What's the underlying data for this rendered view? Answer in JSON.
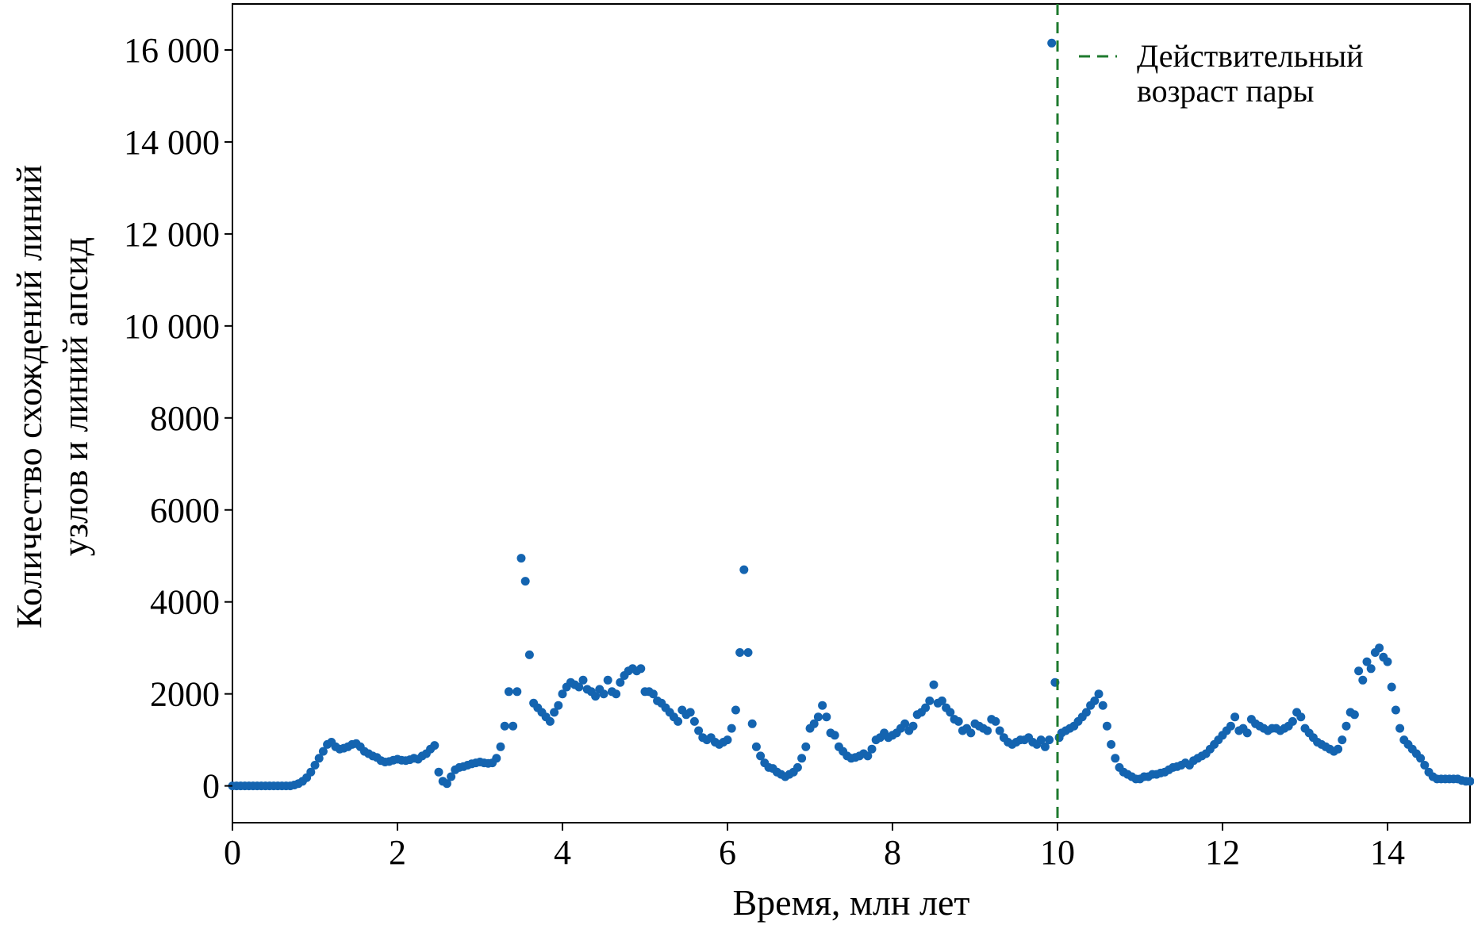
{
  "chart_data": {
    "type": "scatter",
    "xlabel": "Время, млн лет",
    "ylabel_line1": "Количество схождений линий",
    "ylabel_line2": "узлов и линий апсид",
    "xlim": [
      0,
      15
    ],
    "ylim": [
      -800,
      17000
    ],
    "x_ticks": [
      0,
      2,
      4,
      6,
      8,
      10,
      12,
      14
    ],
    "x_tick_labels": [
      "0",
      "2",
      "4",
      "6",
      "8",
      "10",
      "12",
      "14"
    ],
    "y_ticks": [
      0,
      2000,
      4000,
      6000,
      8000,
      10000,
      12000,
      14000,
      16000
    ],
    "y_tick_labels": [
      "0",
      "2000",
      "4000",
      "6000",
      "8000",
      "10 000",
      "12 000",
      "14 000",
      "16 000"
    ],
    "grid": false,
    "point_color": "#1464b0",
    "reference_line": {
      "x": 10,
      "color": "#1e7a2e",
      "style": "dashed"
    },
    "legend": {
      "placement": "top-right",
      "entries": [
        "Действительный возраст пары"
      ]
    },
    "series": [
      {
        "points": [
          [
            0.0,
            0
          ],
          [
            0.05,
            0
          ],
          [
            0.1,
            0
          ],
          [
            0.15,
            0
          ],
          [
            0.2,
            0
          ],
          [
            0.25,
            0
          ],
          [
            0.3,
            0
          ],
          [
            0.35,
            0
          ],
          [
            0.4,
            0
          ],
          [
            0.45,
            0
          ],
          [
            0.5,
            0
          ],
          [
            0.55,
            0
          ],
          [
            0.6,
            0
          ],
          [
            0.65,
            0
          ],
          [
            0.7,
            0
          ],
          [
            0.75,
            20
          ],
          [
            0.8,
            50
          ],
          [
            0.85,
            100
          ],
          [
            0.9,
            180
          ],
          [
            0.95,
            300
          ],
          [
            1.0,
            450
          ],
          [
            1.05,
            600
          ],
          [
            1.1,
            750
          ],
          [
            1.15,
            900
          ],
          [
            1.2,
            950
          ],
          [
            1.25,
            850
          ],
          [
            1.3,
            800
          ],
          [
            1.35,
            820
          ],
          [
            1.4,
            850
          ],
          [
            1.45,
            900
          ],
          [
            1.5,
            920
          ],
          [
            1.55,
            850
          ],
          [
            1.6,
            750
          ],
          [
            1.65,
            700
          ],
          [
            1.7,
            650
          ],
          [
            1.75,
            620
          ],
          [
            1.8,
            550
          ],
          [
            1.85,
            520
          ],
          [
            1.9,
            530
          ],
          [
            1.95,
            560
          ],
          [
            2.0,
            580
          ],
          [
            2.05,
            560
          ],
          [
            2.1,
            550
          ],
          [
            2.15,
            570
          ],
          [
            2.2,
            600
          ],
          [
            2.25,
            580
          ],
          [
            2.3,
            650
          ],
          [
            2.35,
            700
          ],
          [
            2.4,
            800
          ],
          [
            2.45,
            880
          ],
          [
            2.5,
            300
          ],
          [
            2.55,
            100
          ],
          [
            2.6,
            50
          ],
          [
            2.65,
            200
          ],
          [
            2.7,
            350
          ],
          [
            2.75,
            400
          ],
          [
            2.8,
            420
          ],
          [
            2.85,
            450
          ],
          [
            2.9,
            480
          ],
          [
            2.95,
            500
          ],
          [
            3.0,
            520
          ],
          [
            3.05,
            500
          ],
          [
            3.1,
            490
          ],
          [
            3.15,
            500
          ],
          [
            3.2,
            600
          ],
          [
            3.25,
            850
          ],
          [
            3.3,
            1300
          ],
          [
            3.35,
            2050
          ],
          [
            3.4,
            1300
          ],
          [
            3.45,
            2050
          ],
          [
            3.5,
            4950
          ],
          [
            3.55,
            4450
          ],
          [
            3.6,
            2850
          ],
          [
            3.65,
            1800
          ],
          [
            3.7,
            1700
          ],
          [
            3.75,
            1600
          ],
          [
            3.8,
            1500
          ],
          [
            3.85,
            1400
          ],
          [
            3.9,
            1600
          ],
          [
            3.95,
            1750
          ],
          [
            4.0,
            2000
          ],
          [
            4.05,
            2150
          ],
          [
            4.1,
            2250
          ],
          [
            4.15,
            2200
          ],
          [
            4.2,
            2150
          ],
          [
            4.25,
            2300
          ],
          [
            4.3,
            2100
          ],
          [
            4.35,
            2050
          ],
          [
            4.4,
            1950
          ],
          [
            4.45,
            2100
          ],
          [
            4.5,
            2000
          ],
          [
            4.55,
            2300
          ],
          [
            4.6,
            2050
          ],
          [
            4.65,
            2000
          ],
          [
            4.7,
            2250
          ],
          [
            4.75,
            2400
          ],
          [
            4.8,
            2500
          ],
          [
            4.85,
            2550
          ],
          [
            4.9,
            2500
          ],
          [
            4.95,
            2550
          ],
          [
            5.0,
            2050
          ],
          [
            5.05,
            2050
          ],
          [
            5.1,
            2000
          ],
          [
            5.15,
            1850
          ],
          [
            5.2,
            1800
          ],
          [
            5.25,
            1700
          ],
          [
            5.3,
            1600
          ],
          [
            5.35,
            1500
          ],
          [
            5.4,
            1400
          ],
          [
            5.45,
            1650
          ],
          [
            5.5,
            1550
          ],
          [
            5.55,
            1600
          ],
          [
            5.6,
            1400
          ],
          [
            5.65,
            1200
          ],
          [
            5.7,
            1050
          ],
          [
            5.75,
            1000
          ],
          [
            5.8,
            1050
          ],
          [
            5.85,
            950
          ],
          [
            5.9,
            900
          ],
          [
            5.95,
            950
          ],
          [
            6.0,
            1000
          ],
          [
            6.05,
            1250
          ],
          [
            6.1,
            1650
          ],
          [
            6.15,
            2900
          ],
          [
            6.2,
            4700
          ],
          [
            6.25,
            2900
          ],
          [
            6.3,
            1350
          ],
          [
            6.35,
            850
          ],
          [
            6.4,
            650
          ],
          [
            6.45,
            500
          ],
          [
            6.5,
            400
          ],
          [
            6.55,
            380
          ],
          [
            6.6,
            300
          ],
          [
            6.65,
            250
          ],
          [
            6.7,
            200
          ],
          [
            6.75,
            250
          ],
          [
            6.8,
            300
          ],
          [
            6.85,
            400
          ],
          [
            6.9,
            600
          ],
          [
            6.95,
            850
          ],
          [
            7.0,
            1250
          ],
          [
            7.05,
            1350
          ],
          [
            7.1,
            1500
          ],
          [
            7.15,
            1750
          ],
          [
            7.2,
            1500
          ],
          [
            7.25,
            1150
          ],
          [
            7.3,
            1100
          ],
          [
            7.35,
            850
          ],
          [
            7.4,
            750
          ],
          [
            7.45,
            650
          ],
          [
            7.5,
            600
          ],
          [
            7.55,
            620
          ],
          [
            7.6,
            650
          ],
          [
            7.65,
            700
          ],
          [
            7.7,
            650
          ],
          [
            7.75,
            800
          ],
          [
            7.8,
            1000
          ],
          [
            7.85,
            1050
          ],
          [
            7.9,
            1150
          ],
          [
            7.95,
            1050
          ],
          [
            8.0,
            1100
          ],
          [
            8.05,
            1150
          ],
          [
            8.1,
            1250
          ],
          [
            8.15,
            1350
          ],
          [
            8.2,
            1200
          ],
          [
            8.25,
            1300
          ],
          [
            8.3,
            1550
          ],
          [
            8.35,
            1600
          ],
          [
            8.4,
            1700
          ],
          [
            8.45,
            1850
          ],
          [
            8.5,
            2200
          ],
          [
            8.55,
            1800
          ],
          [
            8.6,
            1850
          ],
          [
            8.65,
            1700
          ],
          [
            8.7,
            1600
          ],
          [
            8.75,
            1450
          ],
          [
            8.8,
            1400
          ],
          [
            8.85,
            1200
          ],
          [
            8.9,
            1250
          ],
          [
            8.95,
            1150
          ],
          [
            9.0,
            1350
          ],
          [
            9.05,
            1300
          ],
          [
            9.1,
            1250
          ],
          [
            9.15,
            1200
          ],
          [
            9.2,
            1450
          ],
          [
            9.25,
            1400
          ],
          [
            9.3,
            1200
          ],
          [
            9.35,
            1050
          ],
          [
            9.4,
            950
          ],
          [
            9.45,
            900
          ],
          [
            9.5,
            950
          ],
          [
            9.55,
            1000
          ],
          [
            9.6,
            1000
          ],
          [
            9.65,
            1050
          ],
          [
            9.7,
            950
          ],
          [
            9.75,
            900
          ],
          [
            9.8,
            1000
          ],
          [
            9.85,
            850
          ],
          [
            9.9,
            1000
          ],
          [
            9.93,
            16150
          ],
          [
            9.97,
            2250
          ],
          [
            10.02,
            1050
          ],
          [
            10.05,
            1150
          ],
          [
            10.1,
            1200
          ],
          [
            10.15,
            1250
          ],
          [
            10.2,
            1300
          ],
          [
            10.25,
            1400
          ],
          [
            10.3,
            1500
          ],
          [
            10.35,
            1600
          ],
          [
            10.4,
            1750
          ],
          [
            10.45,
            1850
          ],
          [
            10.5,
            2000
          ],
          [
            10.55,
            1750
          ],
          [
            10.6,
            1300
          ],
          [
            10.65,
            900
          ],
          [
            10.7,
            600
          ],
          [
            10.75,
            400
          ],
          [
            10.8,
            300
          ],
          [
            10.85,
            250
          ],
          [
            10.9,
            200
          ],
          [
            10.95,
            150
          ],
          [
            11.0,
            150
          ],
          [
            11.05,
            200
          ],
          [
            11.1,
            200
          ],
          [
            11.15,
            250
          ],
          [
            11.2,
            250
          ],
          [
            11.25,
            280
          ],
          [
            11.3,
            300
          ],
          [
            11.35,
            350
          ],
          [
            11.4,
            400
          ],
          [
            11.45,
            420
          ],
          [
            11.5,
            450
          ],
          [
            11.55,
            500
          ],
          [
            11.6,
            450
          ],
          [
            11.65,
            550
          ],
          [
            11.7,
            600
          ],
          [
            11.75,
            650
          ],
          [
            11.8,
            700
          ],
          [
            11.85,
            800
          ],
          [
            11.9,
            900
          ],
          [
            11.95,
            1000
          ],
          [
            12.0,
            1100
          ],
          [
            12.05,
            1200
          ],
          [
            12.1,
            1300
          ],
          [
            12.15,
            1500
          ],
          [
            12.2,
            1200
          ],
          [
            12.25,
            1250
          ],
          [
            12.3,
            1150
          ],
          [
            12.35,
            1450
          ],
          [
            12.4,
            1350
          ],
          [
            12.45,
            1300
          ],
          [
            12.5,
            1250
          ],
          [
            12.55,
            1200
          ],
          [
            12.6,
            1250
          ],
          [
            12.65,
            1250
          ],
          [
            12.7,
            1200
          ],
          [
            12.75,
            1250
          ],
          [
            12.8,
            1300
          ],
          [
            12.85,
            1400
          ],
          [
            12.9,
            1600
          ],
          [
            12.95,
            1500
          ],
          [
            13.0,
            1250
          ],
          [
            13.05,
            1150
          ],
          [
            13.1,
            1050
          ],
          [
            13.15,
            950
          ],
          [
            13.2,
            900
          ],
          [
            13.25,
            850
          ],
          [
            13.3,
            800
          ],
          [
            13.35,
            750
          ],
          [
            13.4,
            800
          ],
          [
            13.45,
            1000
          ],
          [
            13.5,
            1300
          ],
          [
            13.55,
            1600
          ],
          [
            13.6,
            1550
          ],
          [
            13.65,
            2500
          ],
          [
            13.7,
            2300
          ],
          [
            13.75,
            2700
          ],
          [
            13.8,
            2550
          ],
          [
            13.85,
            2900
          ],
          [
            13.9,
            3000
          ],
          [
            13.95,
            2800
          ],
          [
            14.0,
            2700
          ],
          [
            14.05,
            2150
          ],
          [
            14.1,
            1650
          ],
          [
            14.15,
            1250
          ],
          [
            14.2,
            1000
          ],
          [
            14.25,
            900
          ],
          [
            14.3,
            800
          ],
          [
            14.35,
            700
          ],
          [
            14.4,
            600
          ],
          [
            14.45,
            450
          ],
          [
            14.5,
            300
          ],
          [
            14.55,
            200
          ],
          [
            14.6,
            150
          ],
          [
            14.65,
            150
          ],
          [
            14.7,
            150
          ],
          [
            14.75,
            150
          ],
          [
            14.8,
            150
          ],
          [
            14.85,
            150
          ],
          [
            14.9,
            120
          ],
          [
            14.95,
            100
          ],
          [
            15.0,
            100
          ]
        ]
      }
    ]
  }
}
